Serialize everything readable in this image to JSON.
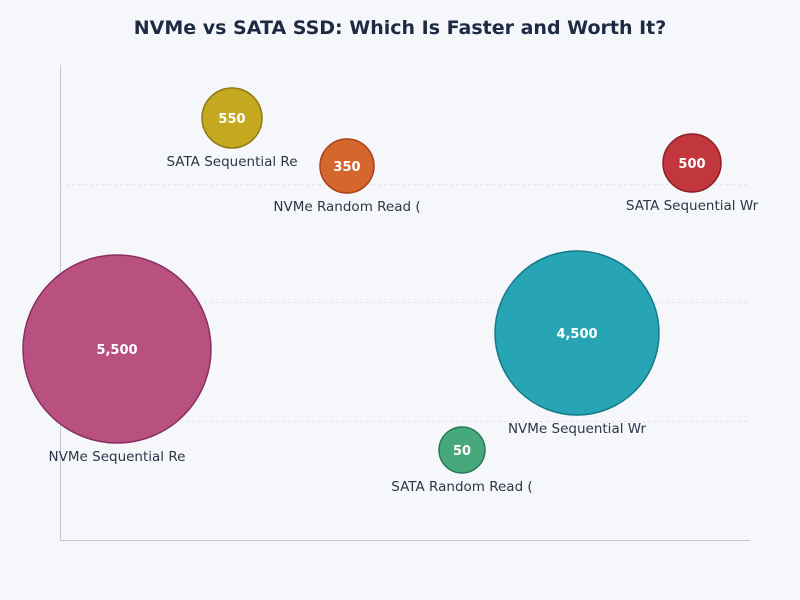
{
  "chart_data": {
    "type": "bubble",
    "title": "NVMe vs SATA SSD: Which Is Faster and Worth It?",
    "xlabel": "",
    "ylabel": "",
    "grid": true,
    "legend": "none",
    "bubbles": [
      {
        "label": "NVMe Sequential Re",
        "value": 5500,
        "value_text": "5,500",
        "color": "#b85080",
        "stroke": "#8a2e5e"
      },
      {
        "label": "SATA Sequential Re",
        "value": 550,
        "value_text": "550",
        "color": "#c4a820",
        "stroke": "#8f7a10"
      },
      {
        "label": "NVMe Random Read (",
        "value": 350,
        "value_text": "350",
        "color": "#d4662e",
        "stroke": "#a8421a"
      },
      {
        "label": "SATA Random Read (",
        "value": 50,
        "value_text": "50",
        "color": "#47a87c",
        "stroke": "#2a7a55"
      },
      {
        "label": "NVMe Sequential Wr",
        "value": 4500,
        "value_text": "4,500",
        "color": "#27a5b5",
        "stroke": "#167a88"
      },
      {
        "label": "SATA Sequential Wr",
        "value": 500,
        "value_text": "500",
        "color": "#c2363e",
        "stroke": "#8e1e26"
      }
    ]
  }
}
